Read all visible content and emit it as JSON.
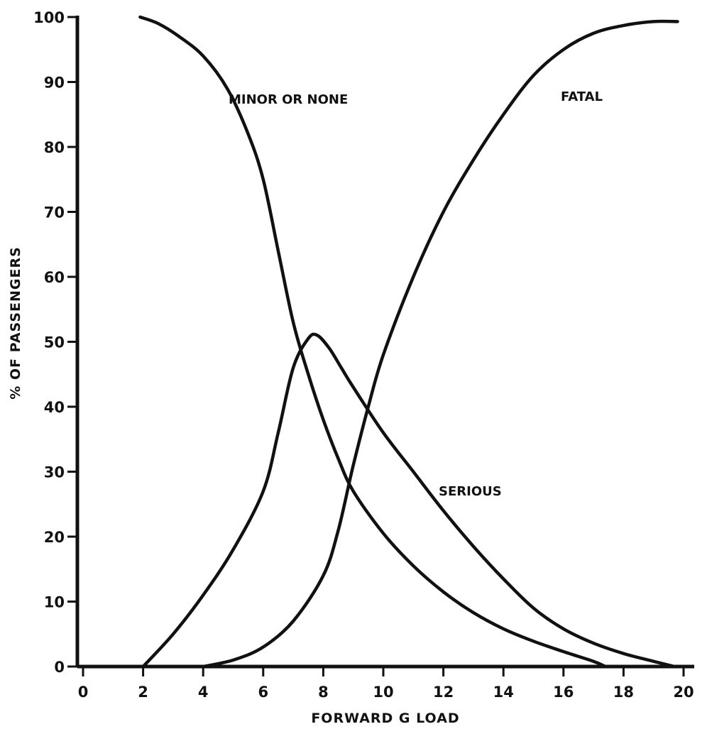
{
  "chart_data": {
    "type": "line",
    "title": "",
    "xlabel": "FORWARD G LOAD",
    "ylabel": "% OF PASSENGERS",
    "xlim": [
      0,
      20
    ],
    "ylim": [
      0,
      100
    ],
    "x_ticks": [
      0,
      2,
      4,
      6,
      8,
      10,
      12,
      14,
      16,
      18,
      20
    ],
    "y_ticks": [
      0,
      10,
      20,
      30,
      40,
      50,
      60,
      70,
      80,
      90,
      100
    ],
    "grid": false,
    "legend": "labels placed next to curves",
    "series": [
      {
        "name": "MINOR OR NONE",
        "x": [
          1.9,
          2.5,
          3.2,
          4.0,
          4.8,
          5.5,
          6.0,
          6.5,
          7.0,
          7.5,
          8.0,
          8.5,
          9.0,
          10.0,
          11.0,
          12.0,
          13.0,
          14.0,
          15.0,
          16.0,
          17.0,
          17.4
        ],
        "y": [
          100,
          99,
          97,
          94,
          89,
          82,
          75,
          64,
          53,
          45,
          38,
          32,
          27,
          20.5,
          15.5,
          11.5,
          8.3,
          5.8,
          3.9,
          2.3,
          0.8,
          0
        ]
      },
      {
        "name": "SERIOUS",
        "x": [
          2.0,
          3.0,
          4.0,
          5.0,
          6.0,
          6.5,
          7.0,
          7.5,
          7.8,
          8.2,
          8.6,
          9.0,
          10.0,
          11.0,
          12.0,
          13.0,
          14.0,
          15.0,
          16.0,
          17.0,
          18.0,
          19.0,
          19.7
        ],
        "y": [
          0,
          5,
          11,
          18,
          27,
          36,
          46,
          50.5,
          51,
          49,
          46,
          43,
          36,
          30,
          24,
          18.5,
          13.5,
          9,
          5.8,
          3.6,
          2.0,
          0.8,
          0
        ]
      },
      {
        "name": "FATAL",
        "x": [
          4.0,
          5.0,
          6.0,
          7.0,
          8.0,
          8.5,
          9.0,
          9.5,
          10.0,
          11.0,
          12.0,
          13.0,
          14.0,
          15.0,
          16.0,
          17.0,
          18.0,
          19.0,
          19.8
        ],
        "y": [
          0,
          1,
          3,
          7,
          14,
          21,
          31,
          40,
          48,
          60,
          70,
          78,
          85,
          91,
          95,
          97.5,
          98.7,
          99.3,
          99.3
        ]
      }
    ]
  }
}
